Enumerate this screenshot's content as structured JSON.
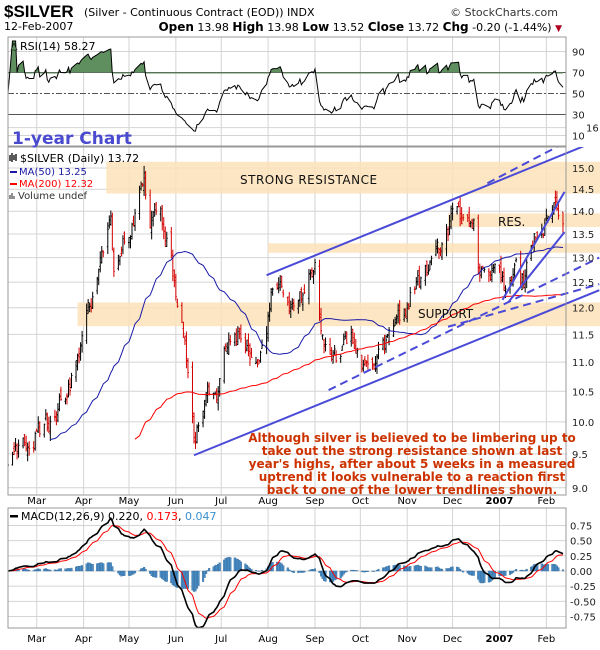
{
  "header": {
    "symbol": "$SILVER",
    "description": "(Silver - Continuous Contract (EOD)) INDX",
    "copyright": "© StockCharts.com",
    "date": "12-Feb-2007",
    "open_label": "Open",
    "open": "13.98",
    "high_label": "High",
    "high": "13.98",
    "low_label": "Low",
    "low": "13.52",
    "close_label": "Close",
    "close": "13.72",
    "chg_label": "Chg",
    "chg": "-0.20 (-1.44%)",
    "chg_direction": "down"
  },
  "chart_data": {
    "type": "line",
    "style": "ohlc-bars",
    "scale": "log",
    "title": "1-year Chart",
    "price_panel": {
      "legend": {
        "main": "$SILVER (Daily) 13.72",
        "ma50": "MA(50) 13.25",
        "ma200": "MA(200) 12.32",
        "volume": "Volume undef"
      },
      "ylim": [
        9.0,
        16.0
      ],
      "yticks": [
        "16",
        "15.0",
        "14.5",
        "14.0",
        "13.5",
        "13.0",
        "12.5",
        "12.0",
        "11.5",
        "11.0",
        "10.5",
        "10.0",
        "9.5",
        "9.0"
      ],
      "colors": {
        "up": "#000000",
        "down": "#d40000",
        "ma50": "#1a1aa6",
        "ma200": "#ff0000",
        "trendline": "#4a4ad8",
        "band": "#fde2b8"
      },
      "close_anchors": [
        [
          "2006-02-10",
          9.2
        ],
        [
          "2006-02-17",
          9.5
        ],
        [
          "2006-02-24",
          9.8
        ],
        [
          "2006-03-03",
          9.9
        ],
        [
          "2006-03-10",
          10.0
        ],
        [
          "2006-03-17",
          10.4
        ],
        [
          "2006-03-24",
          10.7
        ],
        [
          "2006-03-31",
          11.3
        ],
        [
          "2006-04-07",
          12.3
        ],
        [
          "2006-04-12",
          12.8
        ],
        [
          "2006-04-19",
          14.1
        ],
        [
          "2006-04-21",
          12.8
        ],
        [
          "2006-04-28",
          13.5
        ],
        [
          "2006-05-05",
          13.9
        ],
        [
          "2006-05-11",
          14.8
        ],
        [
          "2006-05-15",
          13.6
        ],
        [
          "2006-05-22",
          13.9
        ],
        [
          "2006-06-01",
          12.4
        ],
        [
          "2006-06-06",
          11.6
        ],
        [
          "2006-06-13",
          9.7
        ],
        [
          "2006-06-16",
          10.0
        ],
        [
          "2006-06-22",
          10.5
        ],
        [
          "2006-06-28",
          10.3
        ],
        [
          "2006-07-05",
          11.3
        ],
        [
          "2006-07-12",
          11.4
        ],
        [
          "2006-07-17",
          11.2
        ],
        [
          "2006-07-24",
          10.9
        ],
        [
          "2006-07-31",
          11.3
        ],
        [
          "2006-08-04",
          12.3
        ],
        [
          "2006-08-11",
          12.4
        ],
        [
          "2006-08-18",
          12.1
        ],
        [
          "2006-08-25",
          12.3
        ],
        [
          "2006-09-01",
          12.9
        ],
        [
          "2006-09-05",
          11.5
        ],
        [
          "2006-09-12",
          11.0
        ],
        [
          "2006-09-20",
          11.2
        ],
        [
          "2006-09-28",
          11.4
        ],
        [
          "2006-10-04",
          10.8
        ],
        [
          "2006-10-12",
          11.2
        ],
        [
          "2006-10-20",
          11.5
        ],
        [
          "2006-10-27",
          11.7
        ],
        [
          "2006-11-03",
          12.2
        ],
        [
          "2006-11-10",
          12.5
        ],
        [
          "2006-11-17",
          12.8
        ],
        [
          "2006-11-24",
          13.2
        ],
        [
          "2006-12-01",
          14.0
        ],
        [
          "2006-12-05",
          14.2
        ],
        [
          "2006-12-08",
          13.8
        ],
        [
          "2006-12-13",
          13.7
        ],
        [
          "2006-12-15",
          13.8
        ],
        [
          "2006-12-18",
          12.8
        ],
        [
          "2006-12-22",
          12.6
        ],
        [
          "2006-12-29",
          12.9
        ],
        [
          "2007-01-05",
          12.4
        ],
        [
          "2007-01-10",
          12.8
        ],
        [
          "2007-01-12",
          13.1
        ],
        [
          "2007-01-17",
          12.5
        ],
        [
          "2007-01-19",
          13.0
        ],
        [
          "2007-01-24",
          13.4
        ],
        [
          "2007-01-31",
          13.6
        ],
        [
          "2007-02-06",
          13.9
        ],
        [
          "2007-02-09",
          14.0
        ],
        [
          "2007-02-12",
          13.72
        ]
      ],
      "bands": [
        {
          "label": "STRONG RESISTANCE",
          "from": "2006-04-16",
          "low": 14.4,
          "high": 15.15
        },
        {
          "label": "RES.",
          "from": "2006-11-28",
          "low": 13.65,
          "high": 13.95
        },
        {
          "label": "",
          "from": "2006-08-01",
          "low": 13.1,
          "high": 13.3
        },
        {
          "label": "SUPPORT",
          "from": "2006-03-28",
          "low": 11.65,
          "high": 12.1
        }
      ],
      "trendlines": [
        {
          "p1": [
            "2006-07-31",
            12.64
          ],
          "p2": [
            "2007-03-08",
            15.69
          ],
          "style": "solid"
        },
        {
          "p1": [
            "2006-12-24",
            14.64
          ],
          "p2": [
            "2007-03-08",
            16.07
          ],
          "style": "dashed"
        },
        {
          "p1": [
            "2007-01-03",
            12.15
          ],
          "p2": [
            "2007-02-13",
            14.44
          ],
          "style": "solid"
        },
        {
          "p1": [
            "2007-01-07",
            12.11
          ],
          "p2": [
            "2007-02-13",
            13.54
          ],
          "style": "solid"
        },
        {
          "p1": [
            "2006-06-13",
            9.48
          ],
          "p2": [
            "2007-03-08",
            12.34
          ],
          "style": "solid"
        },
        {
          "p1": [
            "2006-09-10",
            10.52
          ],
          "p2": [
            "2007-03-08",
            13.0
          ],
          "style": "dashed"
        },
        {
          "p1": [
            "2006-11-28",
            11.64
          ],
          "p2": [
            "2007-03-08",
            12.46
          ],
          "style": "dashed"
        }
      ],
      "annotation": [
        "Although silver is believed to be limbering up to",
        "take out the strong resistance shown at last",
        "year's highs, after about 5 weeks in a measured",
        "uptrend it looks vulnerable to a reaction first",
        "back to one of the lower trendlines shown."
      ],
      "annotation_color": "#cc3300"
    },
    "rsi_panel": {
      "legend": "RSI(14) 58.27",
      "ylim": [
        0,
        100
      ],
      "yticks": [
        "90",
        "70",
        "50",
        "30",
        "10"
      ],
      "overbought": 70,
      "oversold": 30,
      "fill_color": "#5f8f5f"
    },
    "macd_panel": {
      "legend_name": "MACD(12,26,9)",
      "macd": "0.220",
      "signal": "0.173",
      "histogram": "0.047",
      "ylim": [
        -0.9,
        0.95
      ],
      "yticks": [
        "0.75",
        "0.50",
        "0.25",
        "0.00",
        "-0.25",
        "-0.50",
        "-0.75"
      ],
      "colors": {
        "macd": "#000000",
        "signal": "#ff0000",
        "histogram": "#4a8cc4"
      }
    },
    "x_axis": {
      "months": [
        {
          "label": "Mar",
          "date": "2006-03-01"
        },
        {
          "label": "Apr",
          "date": "2006-04-01"
        },
        {
          "label": "May",
          "date": "2006-05-01"
        },
        {
          "label": "Jun",
          "date": "2006-06-01"
        },
        {
          "label": "Jul",
          "date": "2006-07-01"
        },
        {
          "label": "Aug",
          "date": "2006-08-01"
        },
        {
          "label": "Sep",
          "date": "2006-09-01"
        },
        {
          "label": "Oct",
          "date": "2006-10-01"
        },
        {
          "label": "Nov",
          "date": "2006-11-01"
        },
        {
          "label": "Dec",
          "date": "2006-12-01"
        },
        {
          "label": "2007",
          "date": "2007-01-01",
          "bold": true
        },
        {
          "label": "Feb",
          "date": "2007-02-01"
        }
      ]
    }
  }
}
